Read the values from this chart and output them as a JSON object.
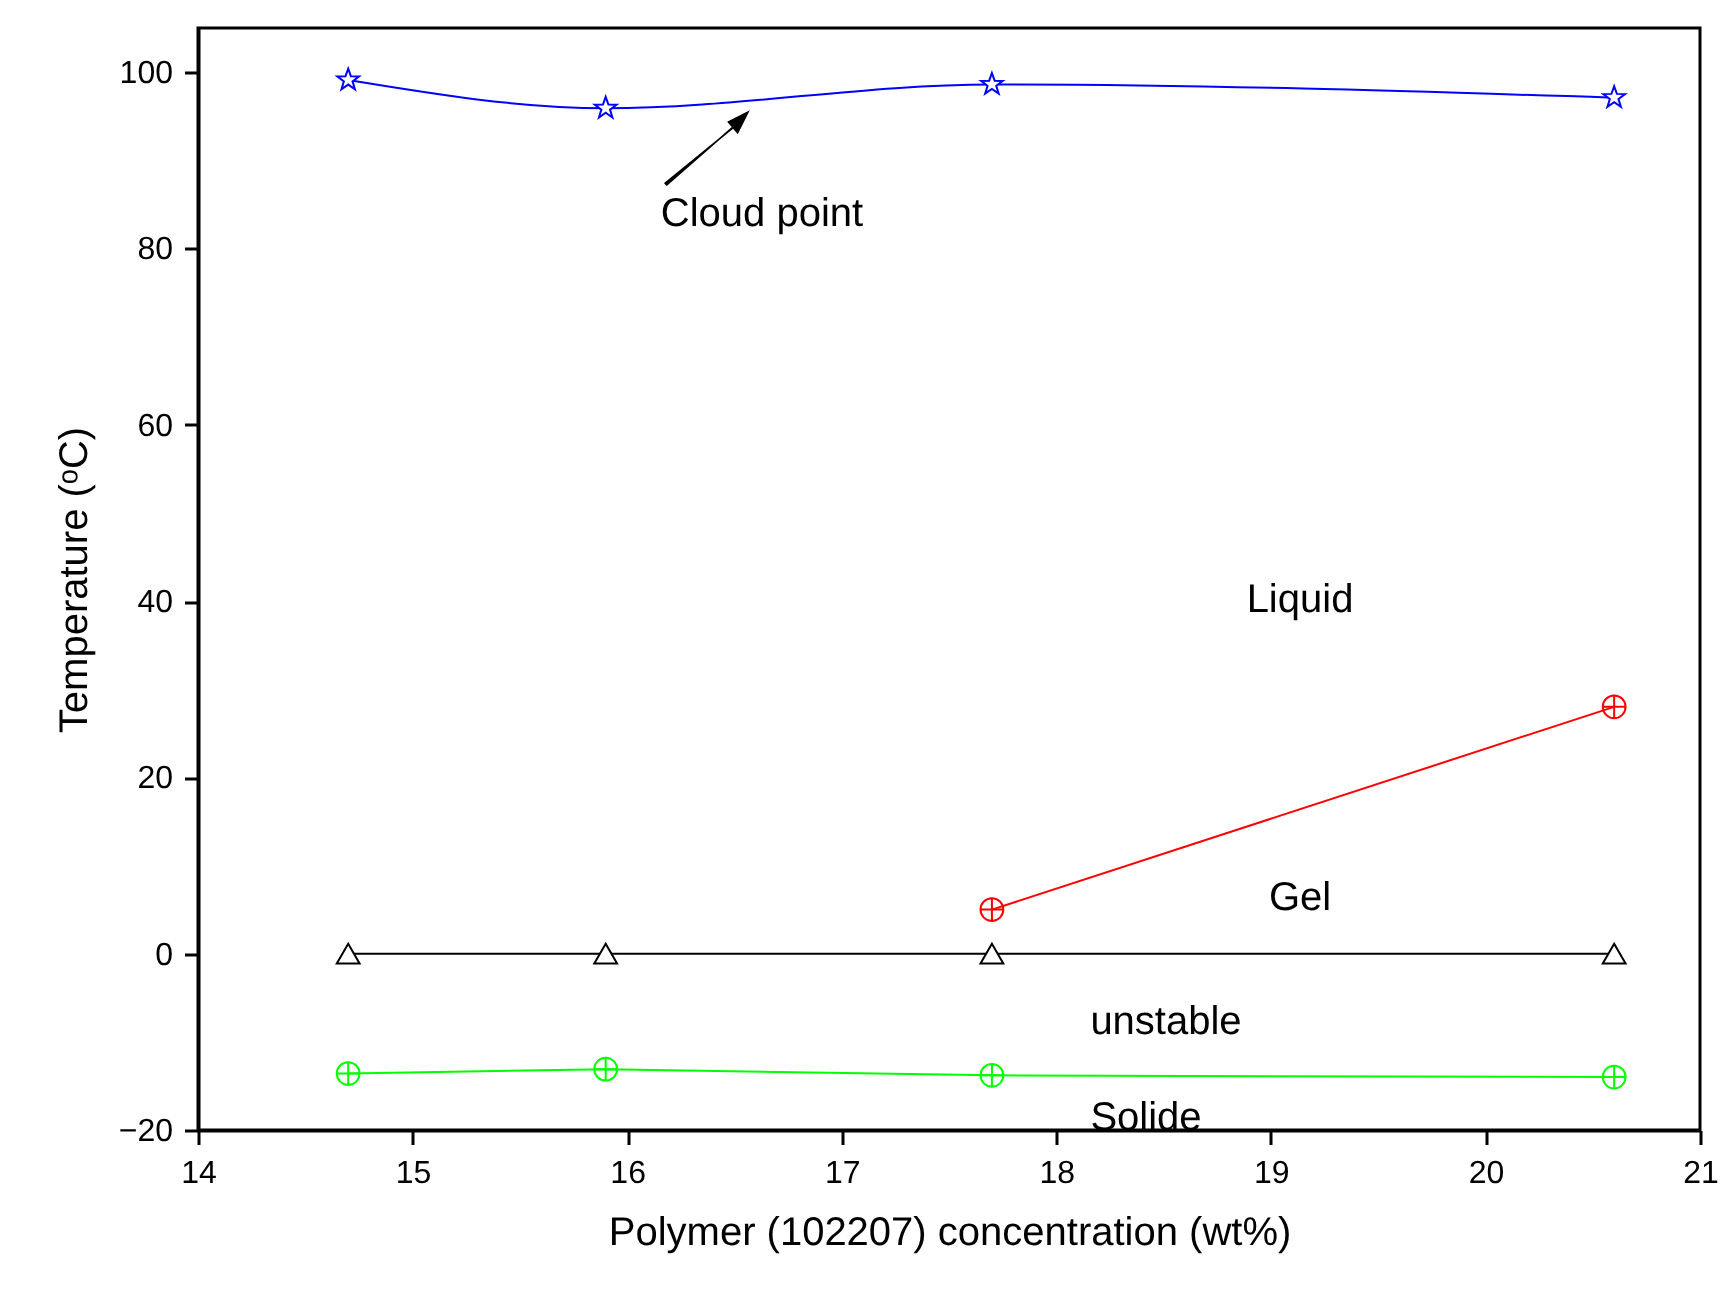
{
  "chart_data": {
    "type": "line",
    "xlabel": "Polymer (102207) concentration (wt%)",
    "ylabel": "Temperature (ᵒC)",
    "xlim": [
      14,
      21
    ],
    "xticks": [
      14,
      15,
      16,
      17,
      18,
      19,
      20,
      21
    ],
    "ylim": [
      -20,
      105
    ],
    "yticks": [
      -20,
      0,
      20,
      40,
      60,
      80,
      100
    ],
    "grid": false,
    "x": [
      14.7,
      15.9,
      17.7,
      20.6
    ],
    "series": [
      {
        "color": "#0000ff",
        "marker": "star",
        "values": [
          99.1,
          95.9,
          98.6,
          97.1
        ]
      },
      {
        "color": "#ff0000",
        "marker": "cross",
        "x": [
          17.7,
          20.6
        ],
        "values": [
          5,
          28
        ]
      },
      {
        "color": "#000000",
        "marker": "triangle",
        "values": [
          0,
          0,
          0,
          0
        ]
      },
      {
        "color": "#00ff00",
        "marker": "cross",
        "values": [
          -13.6,
          -13.1,
          -13.8,
          -14.0
        ]
      }
    ],
    "annotations": [
      "Cloud point",
      "Liquid",
      "Gel",
      "unstable",
      "Solide"
    ]
  }
}
